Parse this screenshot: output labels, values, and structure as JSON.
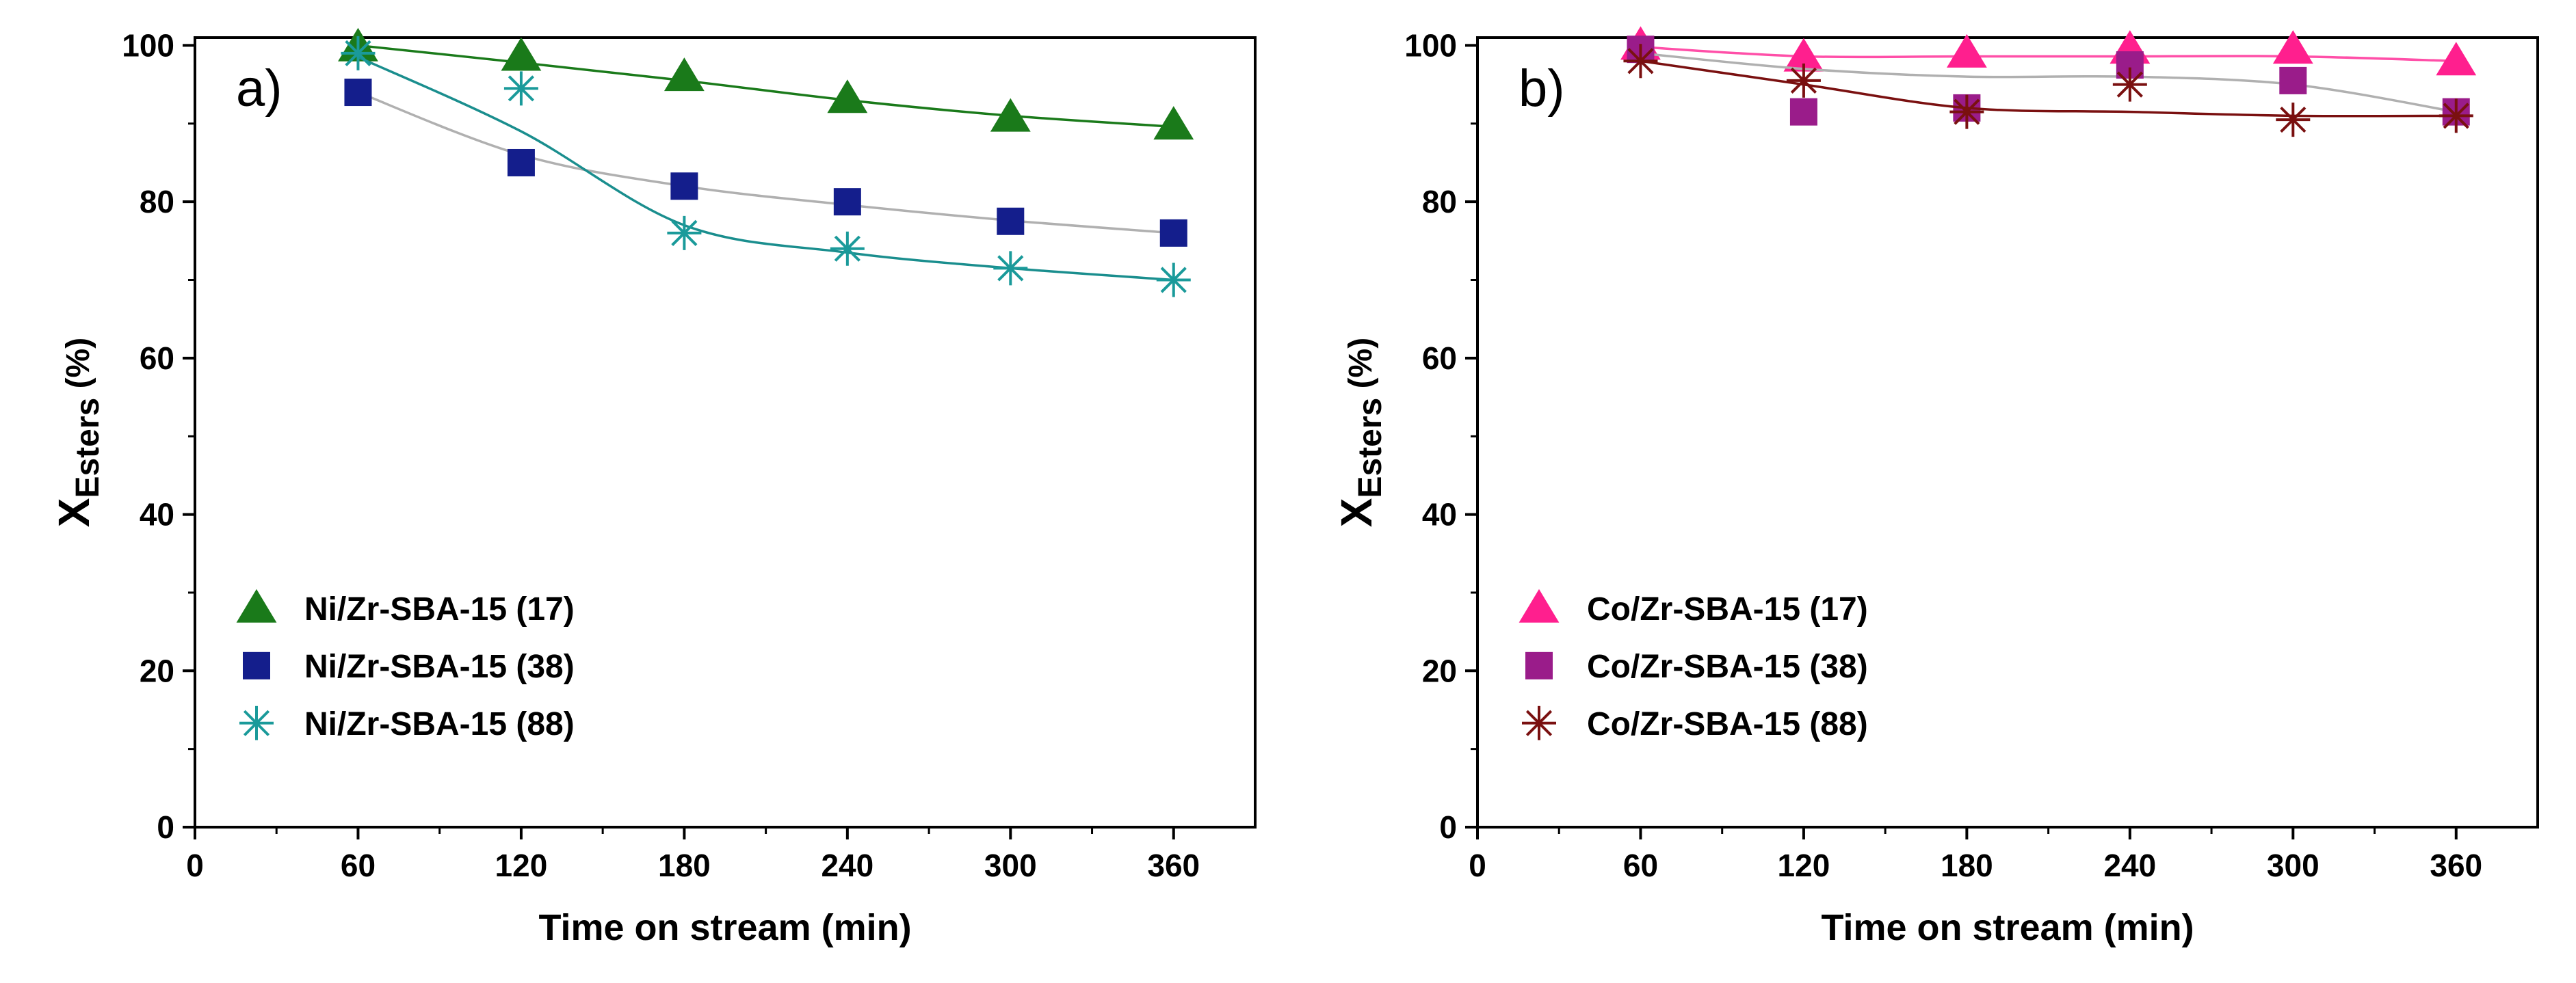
{
  "chart_data": [
    {
      "type": "scatter",
      "panel_label": "a)",
      "xlabel": "Time on stream (min)",
      "ylabel_main": "X",
      "ylabel_sub": "Esters",
      "ylabel_unit": " (%)",
      "xlim": [
        0,
        390
      ],
      "ylim": [
        0,
        101
      ],
      "xticks": [
        0,
        60,
        120,
        180,
        240,
        300,
        360
      ],
      "yticks": [
        0,
        20,
        40,
        60,
        80,
        100
      ],
      "legend_position": "lower-left",
      "series": [
        {
          "name": "Ni/Zr-SBA-15 (17)",
          "marker": "triangle",
          "color": "#1a7a1a",
          "line_color": "#1a7a1a",
          "x": [
            60,
            120,
            180,
            240,
            300,
            360
          ],
          "values": [
            99.8,
            98.6,
            96.0,
            93.2,
            90.8,
            89.8
          ],
          "fit": [
            100,
            97.8,
            95.5,
            93.0,
            91.0,
            89.6
          ]
        },
        {
          "name": "Ni/Zr-SBA-15 (38)",
          "marker": "square",
          "color": "#141e8c",
          "line_color": "#b0b0b0",
          "x": [
            60,
            120,
            180,
            240,
            300,
            360
          ],
          "values": [
            94.0,
            85.0,
            82.0,
            80.0,
            77.5,
            76.0
          ],
          "fit": [
            94.0,
            86.0,
            82.0,
            79.6,
            77.6,
            76.0
          ]
        },
        {
          "name": "Ni/Zr-SBA-15 (88)",
          "marker": "asterisk",
          "color": "#1a9a9a",
          "line_color": "#1a8e8e",
          "x": [
            60,
            120,
            180,
            240,
            300,
            360
          ],
          "values": [
            99.0,
            94.5,
            76.0,
            74.0,
            71.5,
            70.0
          ],
          "fit": [
            98.5,
            89.0,
            77.0,
            73.5,
            71.5,
            70.0
          ]
        }
      ]
    },
    {
      "type": "scatter",
      "panel_label": "b)",
      "xlabel": "Time on stream (min)",
      "ylabel_main": "X",
      "ylabel_sub": "Esters",
      "ylabel_unit": " (%)",
      "xlim": [
        0,
        390
      ],
      "ylim": [
        0,
        101
      ],
      "xticks": [
        0,
        60,
        120,
        180,
        240,
        300,
        360
      ],
      "yticks": [
        0,
        20,
        40,
        60,
        80,
        100
      ],
      "legend_position": "lower-left",
      "series": [
        {
          "name": "Co/Zr-SBA-15 (17)",
          "marker": "triangle",
          "color": "#ff1f8e",
          "line_color": "#ff4fa8",
          "x": [
            60,
            120,
            180,
            240,
            300,
            360
          ],
          "values": [
            100,
            98.5,
            99.0,
            99.5,
            99.5,
            98.0
          ],
          "fit": [
            99.8,
            98.6,
            98.6,
            98.6,
            98.6,
            98.0
          ]
        },
        {
          "name": "Co/Zr-SBA-15 (38)",
          "marker": "square",
          "color": "#9a1c8a",
          "line_color": "#b0b0b0",
          "x": [
            60,
            120,
            180,
            240,
            300,
            360
          ],
          "values": [
            99.5,
            91.5,
            92.0,
            97.5,
            95.5,
            91.5
          ],
          "fit": [
            99.0,
            97.0,
            96.0,
            96.0,
            95.0,
            91.5
          ]
        },
        {
          "name": "Co/Zr-SBA-15 (88)",
          "marker": "asterisk",
          "color": "#7a1010",
          "line_color": "#7a1010",
          "x": [
            60,
            120,
            180,
            240,
            300,
            360
          ],
          "values": [
            98.0,
            95.5,
            91.5,
            95.0,
            90.5,
            91.0
          ],
          "fit": [
            98.0,
            95.0,
            92.0,
            91.5,
            91.0,
            91.0
          ]
        }
      ]
    }
  ]
}
